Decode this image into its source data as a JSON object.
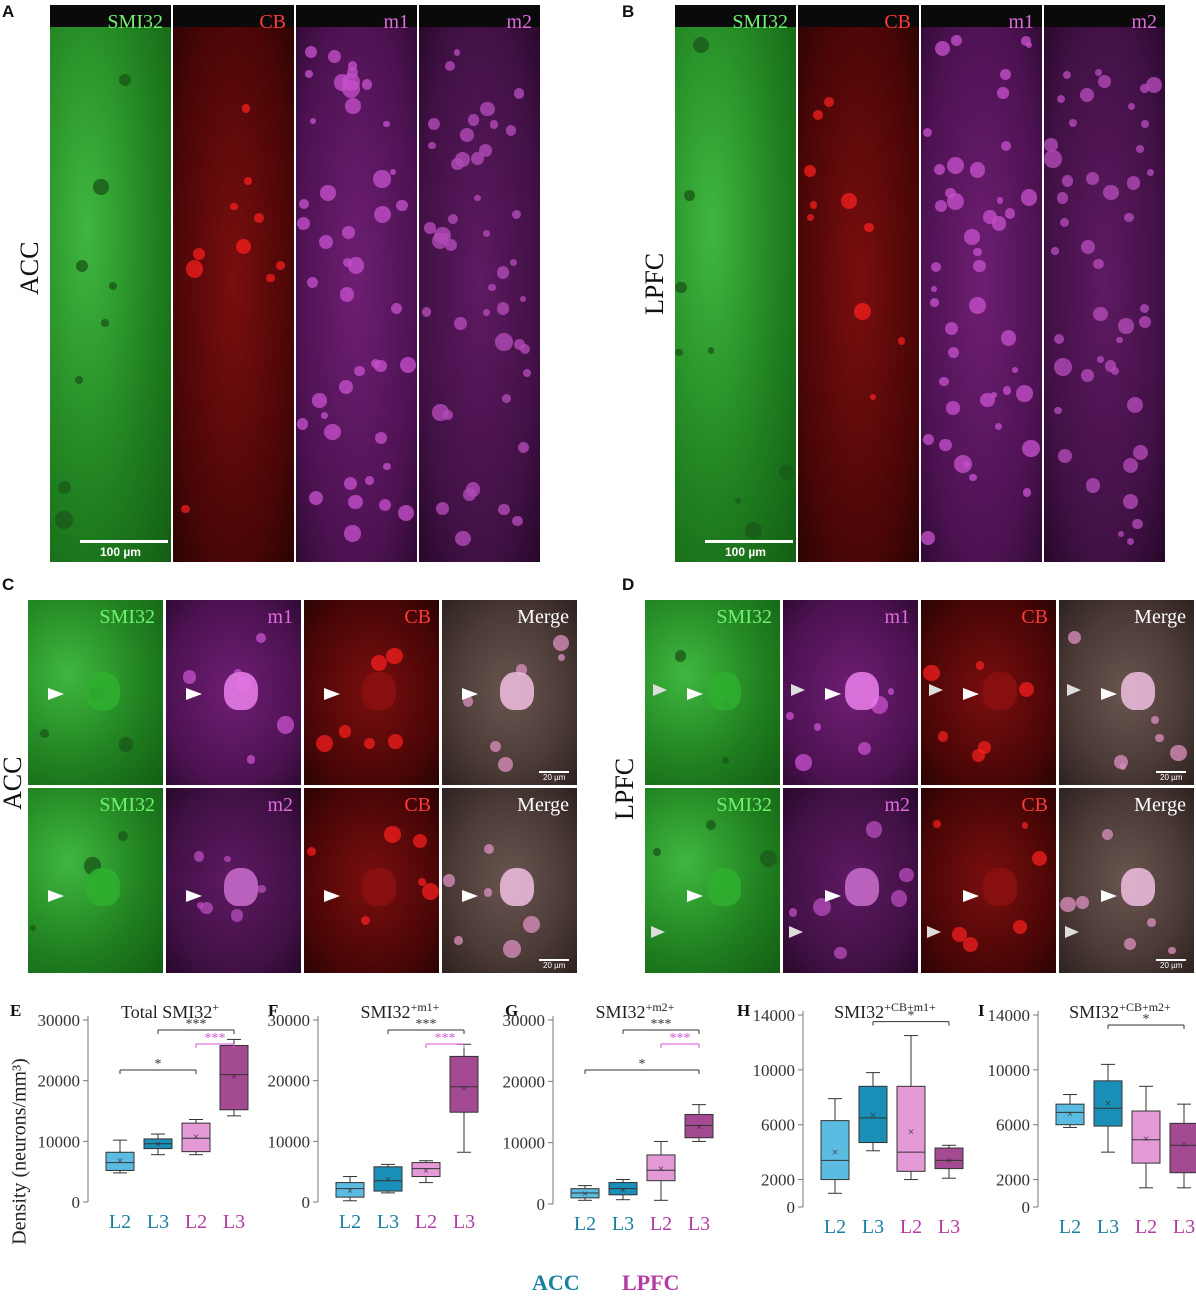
{
  "panels": {
    "A": {
      "letter": "A",
      "region": "ACC",
      "labels": [
        "SMI32",
        "CB",
        "m1",
        "m2"
      ],
      "scale": "100 µm"
    },
    "B": {
      "letter": "B",
      "region": "LPFC",
      "labels": [
        "SMI32",
        "CB",
        "m1",
        "m2"
      ],
      "scale": "100 µm"
    },
    "C": {
      "letter": "C",
      "region": "ACC",
      "row1": [
        "SMI32",
        "m1",
        "CB",
        "Merge"
      ],
      "row2": [
        "SMI32",
        "m2",
        "CB",
        "Merge"
      ],
      "scale": "20 µm"
    },
    "D": {
      "letter": "D",
      "region": "LPFC",
      "row1": [
        "SMI32",
        "m1",
        "CB",
        "Merge"
      ],
      "row2": [
        "SMI32",
        "m2",
        "CB",
        "Merge"
      ],
      "scale": "20 µm"
    }
  },
  "colors": {
    "green": "#3ec93e",
    "red": "#e21414",
    "magenta": "#d653d6",
    "acc_light": "#5bbbe0",
    "acc_dark": "#1a8fb7",
    "lpfc_light": "#e49ad7",
    "lpfc_dark": "#a34a93",
    "acc_text": "#1a7fa3",
    "lpfc_text": "#b33ba3"
  },
  "legend": {
    "acc": "ACC",
    "lpfc": "LPFC"
  },
  "ylabel": "Density (neurons/mm³)",
  "chart_data": [
    {
      "letter": "E",
      "type": "box",
      "title_main": "Total SMI32",
      "title_sup": "+",
      "categories": [
        "L2",
        "L3",
        "L2",
        "L3"
      ],
      "ylim": [
        0,
        30000
      ],
      "yticks": [
        "0",
        "10000",
        "20000",
        "30000"
      ],
      "boxes": [
        {
          "min": 4800,
          "q1": 5200,
          "median": 6500,
          "q3": 8200,
          "max": 10200,
          "mean": 6800
        },
        {
          "min": 7800,
          "q1": 8800,
          "median": 9600,
          "q3": 10400,
          "max": 11200,
          "mean": 9600
        },
        {
          "min": 7800,
          "q1": 8300,
          "median": 10500,
          "q3": 13000,
          "max": 13600,
          "mean": 10800
        },
        {
          "min": 14200,
          "q1": 15200,
          "median": 21000,
          "q3": 25800,
          "max": 26800,
          "mean": 20800
        }
      ],
      "sig": [
        {
          "from": 0,
          "to": 2,
          "label": "*",
          "color": "black"
        },
        {
          "from": 1,
          "to": 3,
          "label": "***",
          "color": "black"
        },
        {
          "from": 2,
          "to": 3,
          "label": "***",
          "color": "magenta"
        }
      ]
    },
    {
      "letter": "F",
      "type": "box",
      "title_main": "SMI32",
      "title_sup": "+m1+",
      "categories": [
        "L2",
        "L3",
        "L2",
        "L3"
      ],
      "ylim": [
        0,
        30000
      ],
      "yticks": [
        "0",
        "10000",
        "20000",
        "30000"
      ],
      "boxes": [
        {
          "min": 200,
          "q1": 800,
          "median": 2200,
          "q3": 3200,
          "max": 4200,
          "mean": 1900
        },
        {
          "min": 1500,
          "q1": 1800,
          "median": 3500,
          "q3": 5800,
          "max": 6200,
          "mean": 3800
        },
        {
          "min": 3200,
          "q1": 4200,
          "median": 5500,
          "q3": 6500,
          "max": 6800,
          "mean": 5200
        },
        {
          "min": 8200,
          "q1": 14800,
          "median": 19000,
          "q3": 24000,
          "max": 26000,
          "mean": 18800
        }
      ],
      "sig": [
        {
          "from": 1,
          "to": 3,
          "label": "***",
          "color": "black"
        },
        {
          "from": 2,
          "to": 3,
          "label": "***",
          "color": "magenta"
        }
      ]
    },
    {
      "letter": "G",
      "type": "box",
      "title_main": "SMI32",
      "title_sup": "+m2+",
      "categories": [
        "L2",
        "L3",
        "L2",
        "L3"
      ],
      "ylim": [
        0,
        30000
      ],
      "yticks": [
        "0",
        "10000",
        "20000",
        "30000"
      ],
      "boxes": [
        {
          "min": 600,
          "q1": 1000,
          "median": 1800,
          "q3": 2500,
          "max": 3000,
          "mean": 1700
        },
        {
          "min": 700,
          "q1": 1500,
          "median": 2500,
          "q3": 3500,
          "max": 4000,
          "mean": 2300
        },
        {
          "min": 600,
          "q1": 3800,
          "median": 5500,
          "q3": 8000,
          "max": 10200,
          "mean": 5800
        },
        {
          "min": 10200,
          "q1": 10800,
          "median": 12800,
          "q3": 14600,
          "max": 16200,
          "mean": 12600
        }
      ],
      "sig": [
        {
          "from": 0,
          "to": 3,
          "label": "*",
          "color": "black"
        },
        {
          "from": 1,
          "to": 3,
          "label": "***",
          "color": "black"
        },
        {
          "from": 2,
          "to": 3,
          "label": "***",
          "color": "magenta"
        }
      ]
    },
    {
      "letter": "H",
      "type": "box",
      "title_main": "SMI32",
      "title_sup": "+CB+m1+",
      "categories": [
        "L2",
        "L3",
        "L2",
        "L3"
      ],
      "ylim": [
        0,
        14000
      ],
      "yticks": [
        "0",
        "2000",
        "6000",
        "10000",
        "14000"
      ],
      "boxes": [
        {
          "min": 1000,
          "q1": 2000,
          "median": 3400,
          "q3": 6300,
          "max": 7900,
          "mean": 4000
        },
        {
          "min": 4100,
          "q1": 4700,
          "median": 6500,
          "q3": 8800,
          "max": 9800,
          "mean": 6700
        },
        {
          "min": 2000,
          "q1": 2600,
          "median": 4000,
          "q3": 8800,
          "max": 12500,
          "mean": 5500
        },
        {
          "min": 2100,
          "q1": 2800,
          "median": 3400,
          "q3": 4300,
          "max": 4500,
          "mean": 3400
        }
      ],
      "sig": [
        {
          "from": 1,
          "to": 3,
          "label": "*",
          "color": "black"
        }
      ]
    },
    {
      "letter": "I",
      "type": "box",
      "title_main": "SMI32",
      "title_sup": "+CB+m2+",
      "categories": [
        "L2",
        "L3",
        "L2",
        "L3"
      ],
      "ylim": [
        0,
        14000
      ],
      "yticks": [
        "0",
        "2000",
        "6000",
        "10000",
        "14000"
      ],
      "boxes": [
        {
          "min": 5800,
          "q1": 6000,
          "median": 6900,
          "q3": 7500,
          "max": 8200,
          "mean": 6800
        },
        {
          "min": 4000,
          "q1": 5900,
          "median": 7200,
          "q3": 9200,
          "max": 10400,
          "mean": 7600
        },
        {
          "min": 1400,
          "q1": 3200,
          "median": 4900,
          "q3": 7000,
          "max": 8800,
          "mean": 5000
        },
        {
          "min": 1400,
          "q1": 2500,
          "median": 4500,
          "q3": 6100,
          "max": 7500,
          "mean": 4600
        }
      ],
      "sig": [
        {
          "from": 1,
          "to": 3,
          "label": "*",
          "color": "black"
        }
      ]
    }
  ]
}
